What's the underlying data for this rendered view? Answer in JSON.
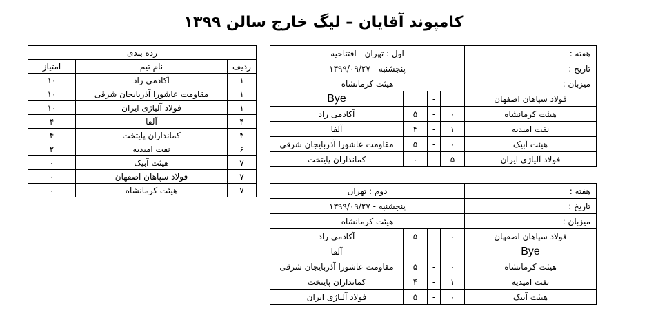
{
  "title": "کامپوند آقایان – لیگ خارج سالن ۱۳۹۹",
  "standings": {
    "caption": "رده بندی",
    "headers": [
      "ردیف",
      "نام تیم",
      "امتیاز"
    ],
    "rows": [
      [
        "۱",
        "آکادمی راد",
        "۱۰"
      ],
      [
        "۱",
        "مقاومت عاشورا آذربایجان شرقی",
        "۱۰"
      ],
      [
        "۱",
        "فولاد آلیاژی ایران",
        "۱۰"
      ],
      [
        "۴",
        "آلفا",
        "۴"
      ],
      [
        "۴",
        "کمانداران پایتخت",
        "۴"
      ],
      [
        "۶",
        "نفت امیدیه",
        "۲"
      ],
      [
        "۷",
        "هیئت آبیک",
        "۰"
      ],
      [
        "۷",
        "فولاد سپاهان اصفهان",
        "۰"
      ],
      [
        "۷",
        "هیئت کرمانشاه",
        "۰"
      ]
    ]
  },
  "weeks": [
    {
      "week_label": "هفته :",
      "week": "اول : تهران - افتتاحیه",
      "date_label": "تاریخ :",
      "date": "پنجشنبه - ۱۳۹۹/۰۹/۲۷",
      "host_label": "میزبان :",
      "host": "هیئت کرمانشاه",
      "matches": [
        [
          "فولاد سپاهان اصفهان",
          "",
          "-",
          "",
          "Bye"
        ],
        [
          "هیئت کرمانشاه",
          "۰",
          "-",
          "۵",
          "آکادمی راد"
        ],
        [
          "نفت امیدیه",
          "۱",
          "-",
          "۴",
          "آلفا"
        ],
        [
          "هیئت آبیک",
          "۰",
          "-",
          "۵",
          "مقاومت عاشورا آذربایجان شرقی"
        ],
        [
          "فولاد آلیاژی ایران",
          "۵",
          "-",
          "۰",
          "کمانداران پایتخت"
        ]
      ]
    },
    {
      "week_label": "هفته :",
      "week": "دوم : تهران",
      "date_label": "تاریخ :",
      "date": "پنجشنبه - ۱۳۹۹/۰۹/۲۷",
      "host_label": "میزبان :",
      "host": "هیئت کرمانشاه",
      "matches": [
        [
          "فولاد سپاهان اصفهان",
          "۰",
          "-",
          "۵",
          "آکادمی راد"
        ],
        [
          "Bye",
          "",
          "-",
          "",
          "آلفا"
        ],
        [
          "هیئت کرمانشاه",
          "۰",
          "-",
          "۵",
          "مقاومت عاشورا آذربایجان شرقی"
        ],
        [
          "نفت امیدیه",
          "۱",
          "-",
          "۴",
          "کمانداران پایتخت"
        ],
        [
          "هیئت آبیک",
          "۰",
          "-",
          "۵",
          "فولاد آلیاژی ایران"
        ]
      ]
    }
  ]
}
